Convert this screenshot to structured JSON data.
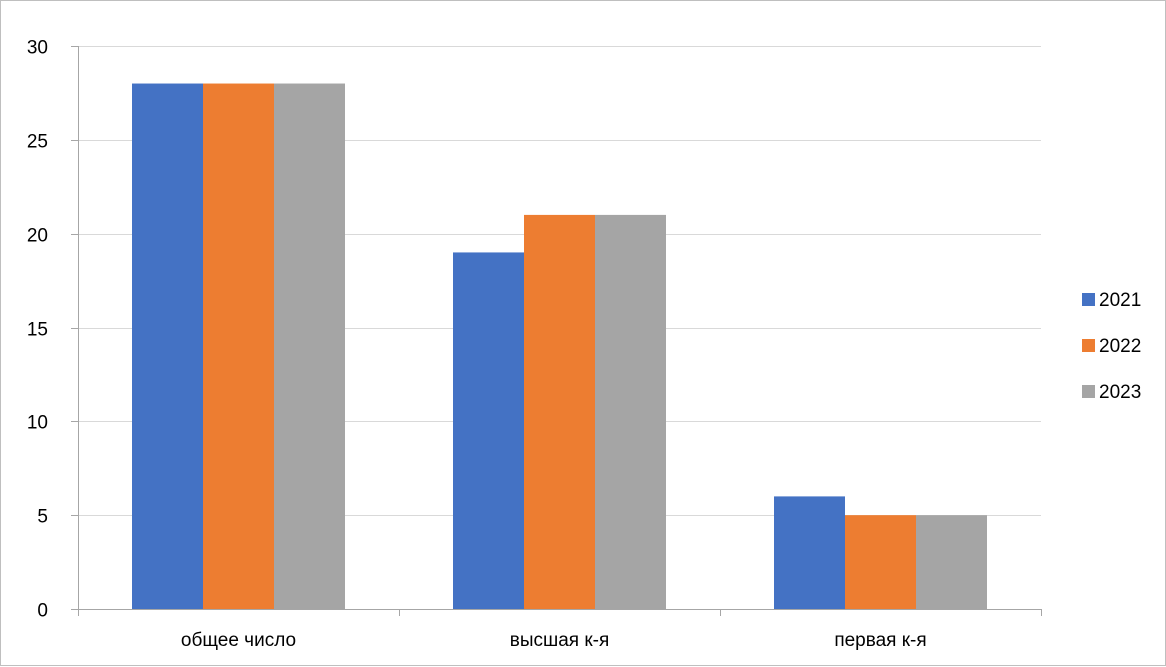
{
  "chart_data": {
    "type": "bar",
    "categories": [
      "общее число",
      "высшая к-я",
      "первая к-я"
    ],
    "series": [
      {
        "name": "2021",
        "values": [
          28,
          19,
          6
        ],
        "color": "#4472C4"
      },
      {
        "name": "2022",
        "values": [
          28,
          21,
          5
        ],
        "color": "#ED7D31"
      },
      {
        "name": "2023",
        "values": [
          28,
          21,
          5
        ],
        "color": "#A5A5A5"
      }
    ],
    "ylim": [
      0,
      30
    ],
    "yticks": [
      0,
      5,
      10,
      15,
      20,
      25,
      30
    ],
    "grid": true,
    "legend_position": "right",
    "title": "",
    "xlabel": "",
    "ylabel": ""
  }
}
